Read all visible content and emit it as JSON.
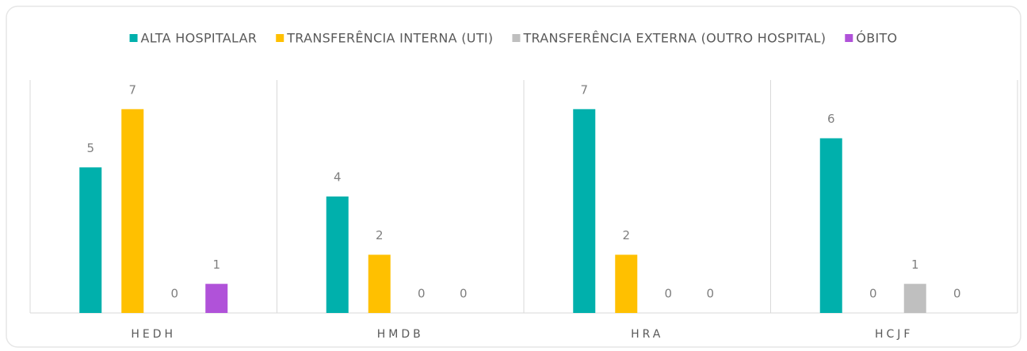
{
  "chart_data": {
    "type": "bar",
    "categories": [
      "HEDH",
      "HMDB",
      "HRA",
      "HCJF"
    ],
    "series": [
      {
        "name": "ALTA HOSPITALAR",
        "color": "#00b0ac",
        "values": [
          5,
          4,
          7,
          6
        ]
      },
      {
        "name": "TRANSFERÊNCIA INTERNA (UTI)",
        "color": "#ffc000",
        "values": [
          7,
          2,
          2,
          0
        ]
      },
      {
        "name": "TRANSFERÊNCIA EXTERNA (OUTRO HOSPITAL)",
        "color": "#bfbfbf",
        "values": [
          0,
          0,
          0,
          1
        ]
      },
      {
        "name": "ÓBITO",
        "color": "#b052d9",
        "values": [
          1,
          0,
          0,
          0
        ]
      }
    ],
    "ylim": [
      0,
      8
    ],
    "legend": "top",
    "data_labels": true
  }
}
